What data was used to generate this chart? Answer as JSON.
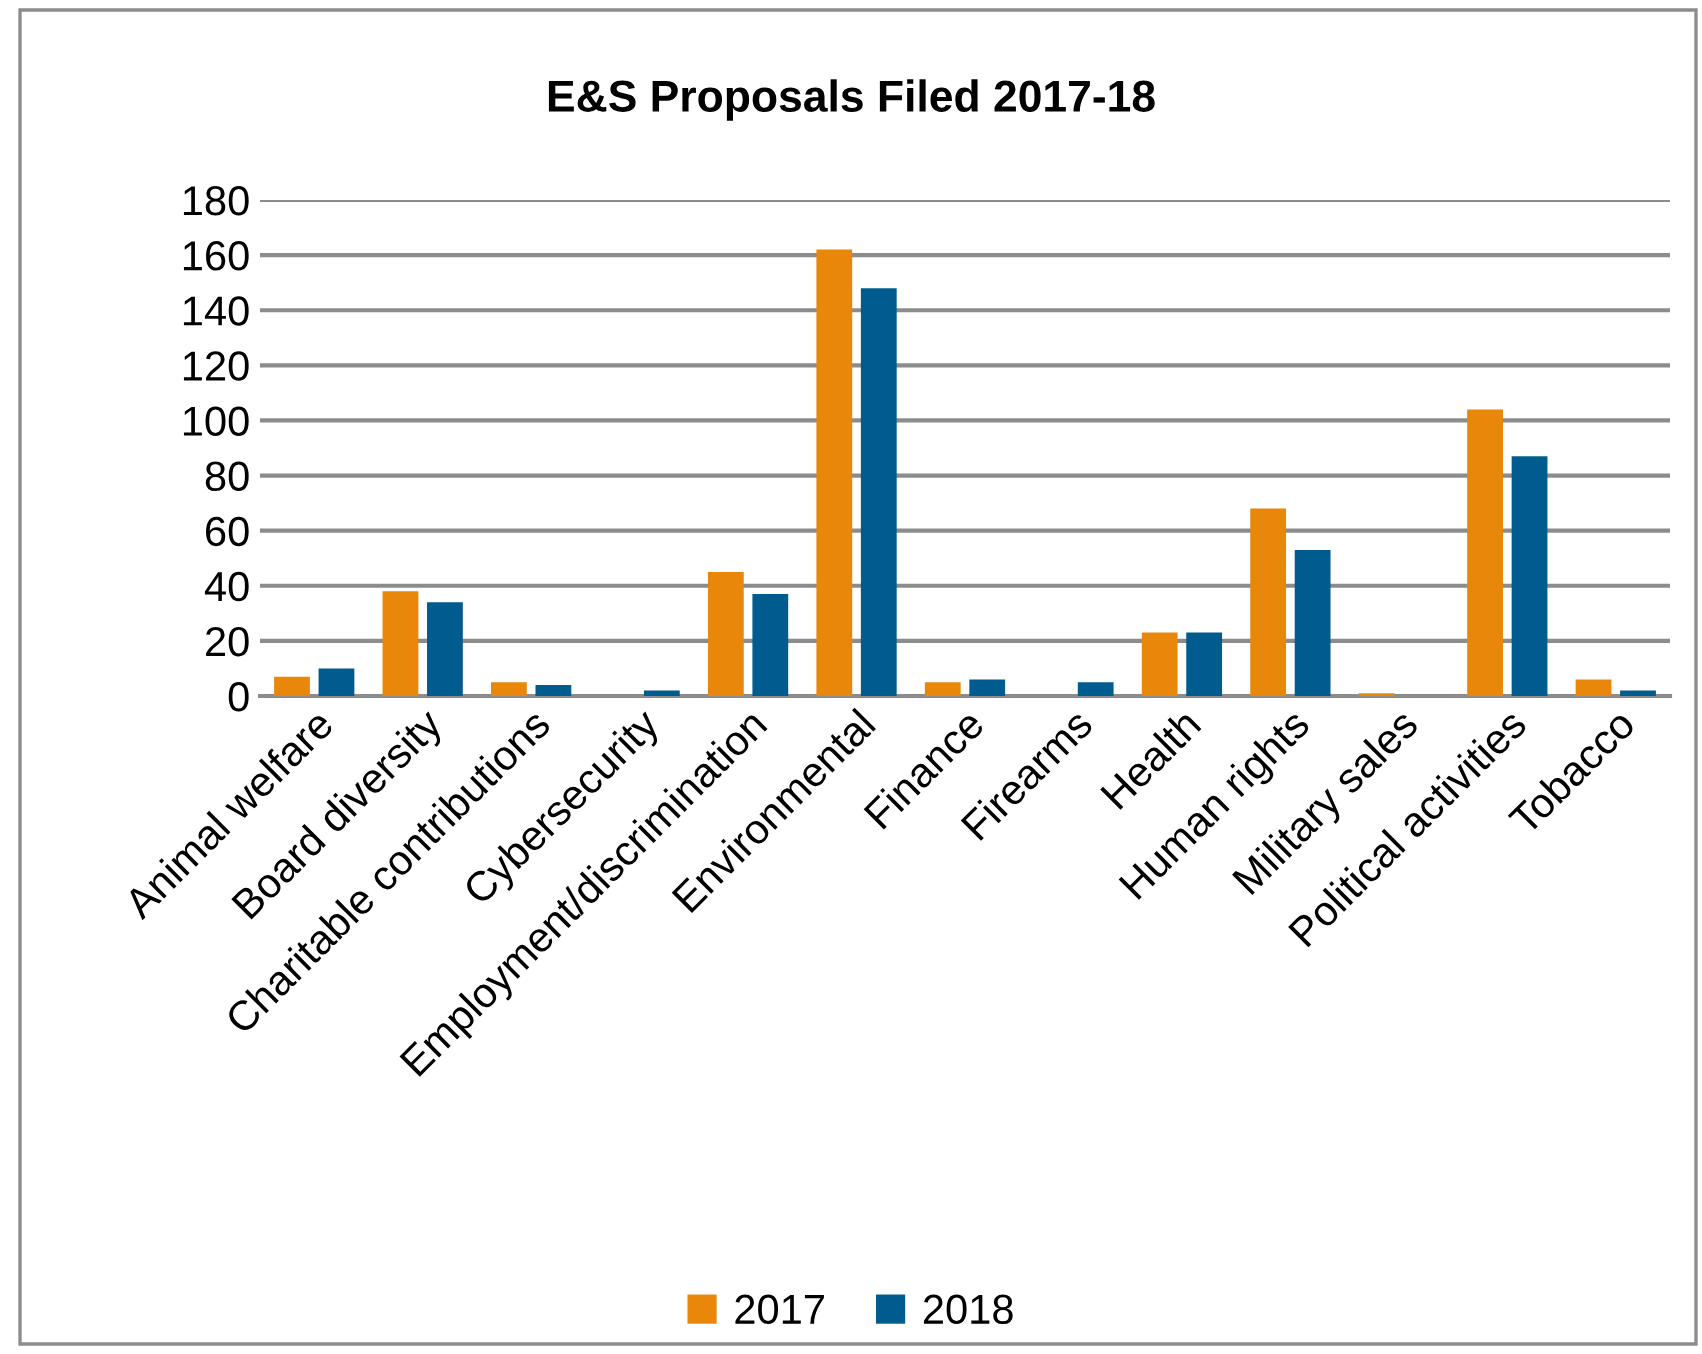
{
  "chart_data": {
    "type": "bar",
    "title": "E&S Proposals Filed 2017-18",
    "categories": [
      "Animal welfare",
      "Board diversity",
      "Charitable contributions",
      "Cybersecurity",
      "Employment/discrimination",
      "Environmental",
      "Finance",
      "Firearms",
      "Health",
      "Human rights",
      "Military sales",
      "Political activities",
      "Tobacco"
    ],
    "series": [
      {
        "name": "2017",
        "color": "#e8870a",
        "values": [
          7,
          38,
          5,
          0,
          45,
          162,
          5,
          0,
          23,
          68,
          1,
          104,
          6
        ]
      },
      {
        "name": "2018",
        "color": "#005b8e",
        "values": [
          10,
          34,
          4,
          2,
          37,
          148,
          6,
          5,
          23,
          53,
          0,
          87,
          2
        ]
      }
    ],
    "ylim": [
      0,
      180
    ],
    "yticks": [
      0,
      20,
      40,
      60,
      80,
      100,
      120,
      140,
      160,
      180
    ],
    "grid": "y",
    "legend": "bottom"
  }
}
